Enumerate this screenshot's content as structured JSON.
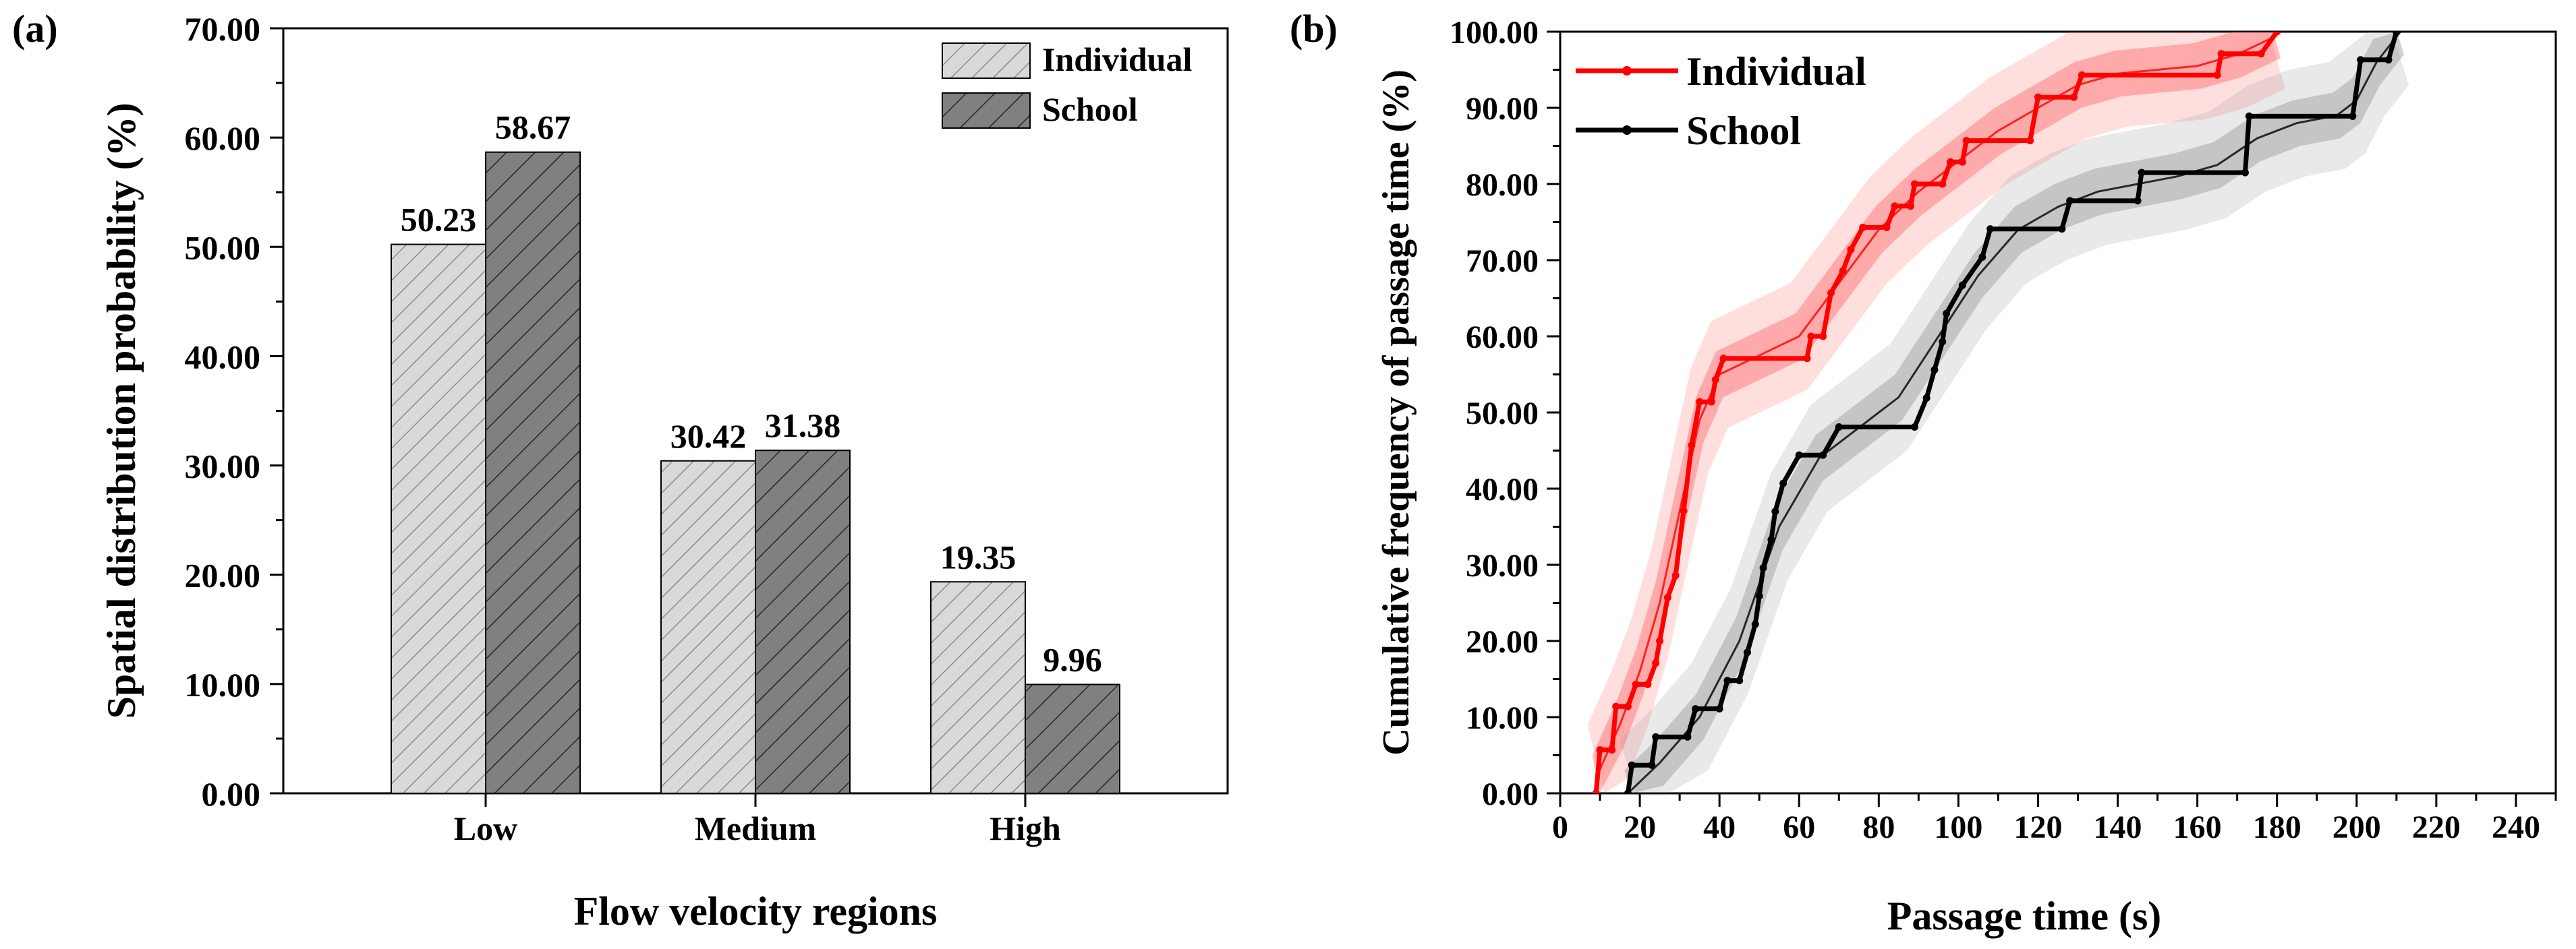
{
  "chart_data": [
    {
      "panel_label": "(a)",
      "type": "bar",
      "categories": [
        "Low",
        "Medium",
        "High"
      ],
      "series": [
        {
          "name": "Individual",
          "values": [
            50.23,
            30.42,
            19.35
          ],
          "value_labels": [
            "50.23",
            "30.42",
            "19.35"
          ],
          "color": "#d9d9d9",
          "hatch_color": "#8c8c8c"
        },
        {
          "name": "School",
          "values": [
            58.67,
            31.38,
            9.96
          ],
          "value_labels": [
            "58.67",
            "31.38",
            "9.96"
          ],
          "color": "#808080",
          "hatch_color": "#2b2b2b"
        }
      ],
      "xlabel": "Flow velocity regions",
      "ylabel": "Spatial distribution probability (%)",
      "ylim": [
        0,
        70
      ],
      "yticks": [
        "0.00",
        "10.00",
        "20.00",
        "30.00",
        "40.00",
        "50.00",
        "60.00",
        "70.00"
      ],
      "legend_position": "top-right",
      "grid": false
    },
    {
      "panel_label": "(b)",
      "type": "line",
      "xlabel": "Passage time (s)",
      "ylabel": "Cumulative frequency of passage time (%)",
      "xlim": [
        0,
        250
      ],
      "ylim": [
        0,
        100
      ],
      "xticks": [
        "0",
        "20",
        "40",
        "60",
        "80",
        "100",
        "120",
        "140",
        "160",
        "180",
        "200",
        "220",
        "240"
      ],
      "yticks": [
        "0.00",
        "10.00",
        "20.00",
        "30.00",
        "40.00",
        "50.00",
        "60.00",
        "70.00",
        "80.00",
        "90.00",
        "100.00"
      ],
      "legend_position": "top-left",
      "grid": false,
      "series": [
        {
          "name": "Individual",
          "color": "#ff0000",
          "band_color": "#ff6b6b",
          "step_points": [
            [
              9,
              0
            ],
            [
              10,
              5.7
            ],
            [
              13,
              5.7
            ],
            [
              14,
              11.4
            ],
            [
              17,
              11.4
            ],
            [
              19,
              14.3
            ],
            [
              22,
              14.3
            ],
            [
              24,
              17.1
            ],
            [
              25,
              20
            ],
            [
              27,
              25.7
            ],
            [
              29,
              28.6
            ],
            [
              31,
              37.1
            ],
            [
              33,
              45.7
            ],
            [
              35,
              51.4
            ],
            [
              38,
              51.4
            ],
            [
              39,
              54.3
            ],
            [
              41,
              57.1
            ],
            [
              62,
              57.1
            ],
            [
              63,
              60
            ],
            [
              66,
              60
            ],
            [
              68,
              65.7
            ],
            [
              71,
              68.6
            ],
            [
              73,
              71.4
            ],
            [
              76,
              74.3
            ],
            [
              82,
              74.3
            ],
            [
              84,
              77.1
            ],
            [
              88,
              77.1
            ],
            [
              89,
              80
            ],
            [
              96,
              80
            ],
            [
              98,
              82.9
            ],
            [
              101,
              82.9
            ],
            [
              102,
              85.7
            ],
            [
              118,
              85.7
            ],
            [
              120,
              91.4
            ],
            [
              129,
              91.4
            ],
            [
              131,
              94.3
            ],
            [
              165,
              94.3
            ],
            [
              166,
              97.1
            ],
            [
              176,
              97.1
            ],
            [
              180,
              100
            ]
          ],
          "fit_points": [
            [
              9,
              2
            ],
            [
              15,
              9
            ],
            [
              20,
              16
            ],
            [
              25,
              25
            ],
            [
              30,
              37
            ],
            [
              35,
              49
            ],
            [
              40,
              55
            ],
            [
              50,
              57.5
            ],
            [
              60,
              60
            ],
            [
              70,
              67
            ],
            [
              80,
              74
            ],
            [
              90,
              79
            ],
            [
              100,
              83
            ],
            [
              110,
              87
            ],
            [
              120,
              90
            ],
            [
              130,
              93
            ],
            [
              140,
              94.5
            ],
            [
              150,
              95
            ],
            [
              160,
              95.5
            ],
            [
              170,
              97
            ],
            [
              180,
              99.5
            ]
          ]
        },
        {
          "name": "School",
          "color": "#000000",
          "band_color": "#9a9a9a",
          "step_points": [
            [
              17,
              0
            ],
            [
              18,
              3.7
            ],
            [
              23,
              3.7
            ],
            [
              24,
              7.4
            ],
            [
              32,
              7.4
            ],
            [
              34,
              11.1
            ],
            [
              40,
              11.1
            ],
            [
              42,
              14.8
            ],
            [
              45,
              14.8
            ],
            [
              47,
              18.5
            ],
            [
              49,
              22.2
            ],
            [
              50,
              25.9
            ],
            [
              51,
              29.6
            ],
            [
              53,
              33.3
            ],
            [
              54,
              37
            ],
            [
              56,
              40.7
            ],
            [
              60,
              44.4
            ],
            [
              66,
              44.4
            ],
            [
              70,
              48.1
            ],
            [
              89,
              48.1
            ],
            [
              92,
              51.9
            ],
            [
              94,
              55.6
            ],
            [
              96,
              59.3
            ],
            [
              97,
              63
            ],
            [
              101,
              66.7
            ],
            [
              106,
              70.4
            ],
            [
              108,
              74.1
            ],
            [
              126,
              74.1
            ],
            [
              128,
              77.8
            ],
            [
              145,
              77.8
            ],
            [
              146,
              81.5
            ],
            [
              172,
              81.5
            ],
            [
              173,
              88.9
            ],
            [
              199,
              88.9
            ],
            [
              201,
              96.3
            ],
            [
              208,
              96.3
            ],
            [
              210,
              100
            ]
          ],
          "fit_points": [
            [
              17,
              0
            ],
            [
              25,
              4
            ],
            [
              35,
              10
            ],
            [
              45,
              20
            ],
            [
              55,
              35
            ],
            [
              65,
              44
            ],
            [
              75,
              48
            ],
            [
              85,
              52
            ],
            [
              95,
              60
            ],
            [
              105,
              68
            ],
            [
              115,
              74
            ],
            [
              125,
              77
            ],
            [
              135,
              79
            ],
            [
              145,
              80
            ],
            [
              155,
              81
            ],
            [
              165,
              82.5
            ],
            [
              175,
              86
            ],
            [
              185,
              88
            ],
            [
              195,
              89
            ],
            [
              200,
              91
            ],
            [
              205,
              96
            ],
            [
              211,
              100
            ]
          ]
        }
      ]
    }
  ]
}
